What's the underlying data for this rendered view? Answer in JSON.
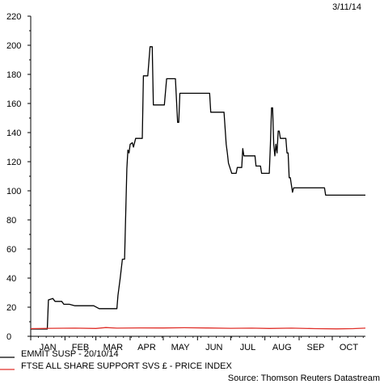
{
  "date_stamp": "3/11/14",
  "source_note": "Source: Thomson Reuters Datastream",
  "chart_data": {
    "type": "line",
    "title": "",
    "xlabel": "",
    "ylabel": "",
    "ylim": [
      0,
      220
    ],
    "y_ticks": [
      0,
      20,
      40,
      60,
      80,
      100,
      120,
      140,
      160,
      180,
      200,
      220
    ],
    "x_range": [
      "2014-01-01",
      "2014-10-31"
    ],
    "x_ticks": [
      {
        "label": "JAN",
        "date": "2014-01-01"
      },
      {
        "label": "FEB",
        "date": "2014-02-01"
      },
      {
        "label": "MAR",
        "date": "2014-03-01"
      },
      {
        "label": "APR",
        "date": "2014-04-01"
      },
      {
        "label": "MAY",
        "date": "2014-05-01"
      },
      {
        "label": "JUN",
        "date": "2014-06-01"
      },
      {
        "label": "JUL",
        "date": "2014-07-01"
      },
      {
        "label": "AUG",
        "date": "2014-08-01"
      },
      {
        "label": "SEP",
        "date": "2014-09-01"
      },
      {
        "label": "OCT",
        "date": "2014-10-01"
      }
    ],
    "grid": false,
    "legend_placement": "bottom-left",
    "series": [
      {
        "name": "EMMIT SUSP - 20/10/14",
        "color": "#000000",
        "points": [
          [
            "2014-01-01",
            5
          ],
          [
            "2014-01-16",
            5
          ],
          [
            "2014-01-17",
            25
          ],
          [
            "2014-01-21",
            26
          ],
          [
            "2014-01-23",
            24
          ],
          [
            "2014-01-29",
            24
          ],
          [
            "2014-01-31",
            22
          ],
          [
            "2014-02-05",
            22
          ],
          [
            "2014-02-10",
            21
          ],
          [
            "2014-02-27",
            21
          ],
          [
            "2014-03-04",
            19
          ],
          [
            "2014-03-20",
            19
          ],
          [
            "2014-03-21",
            28
          ],
          [
            "2014-03-23",
            40
          ],
          [
            "2014-03-25",
            53
          ],
          [
            "2014-03-27",
            53
          ],
          [
            "2014-03-29",
            115
          ],
          [
            "2014-03-30",
            128
          ],
          [
            "2014-03-31",
            126
          ],
          [
            "2014-04-01",
            132
          ],
          [
            "2014-04-03",
            133
          ],
          [
            "2014-04-04",
            130
          ],
          [
            "2014-04-06",
            136
          ],
          [
            "2014-04-12",
            136
          ],
          [
            "2014-04-13",
            179
          ],
          [
            "2014-04-17",
            179
          ],
          [
            "2014-04-19",
            199
          ],
          [
            "2014-04-21",
            199
          ],
          [
            "2014-04-22",
            159
          ],
          [
            "2014-05-02",
            159
          ],
          [
            "2014-05-04",
            177
          ],
          [
            "2014-05-12",
            177
          ],
          [
            "2014-05-14",
            147
          ],
          [
            "2014-05-15",
            147
          ],
          [
            "2014-05-16",
            167
          ],
          [
            "2014-06-12",
            167
          ],
          [
            "2014-06-13",
            154
          ],
          [
            "2014-06-25",
            154
          ],
          [
            "2014-06-27",
            132
          ],
          [
            "2014-06-28",
            126
          ],
          [
            "2014-06-29",
            119
          ],
          [
            "2014-07-02",
            112
          ],
          [
            "2014-07-06",
            112
          ],
          [
            "2014-07-07",
            116
          ],
          [
            "2014-07-11",
            116
          ],
          [
            "2014-07-12",
            129
          ],
          [
            "2014-07-13",
            124
          ],
          [
            "2014-07-23",
            124
          ],
          [
            "2014-07-24",
            117
          ],
          [
            "2014-07-28",
            117
          ],
          [
            "2014-07-29",
            112
          ],
          [
            "2014-08-05",
            112
          ],
          [
            "2014-08-06",
            132
          ],
          [
            "2014-08-07",
            157
          ],
          [
            "2014-08-08",
            157
          ],
          [
            "2014-08-09",
            132
          ],
          [
            "2014-08-10",
            124
          ],
          [
            "2014-08-11",
            132
          ],
          [
            "2014-08-12",
            126
          ],
          [
            "2014-08-13",
            141
          ],
          [
            "2014-08-14",
            141
          ],
          [
            "2014-08-15",
            136
          ],
          [
            "2014-08-20",
            136
          ],
          [
            "2014-08-21",
            126
          ],
          [
            "2014-08-22",
            126
          ],
          [
            "2014-08-23",
            109
          ],
          [
            "2014-08-24",
            109
          ],
          [
            "2014-08-26",
            99
          ],
          [
            "2014-08-27",
            102
          ],
          [
            "2014-09-24",
            102
          ],
          [
            "2014-09-25",
            97
          ],
          [
            "2014-10-31",
            97
          ]
        ]
      },
      {
        "name": "FTSE ALL SHARE SUPPORT SVS £ - PRICE INDEX",
        "color": "#e0302a",
        "points": [
          [
            "2014-01-01",
            5.3
          ],
          [
            "2014-01-20",
            5.5
          ],
          [
            "2014-02-10",
            5.6
          ],
          [
            "2014-03-01",
            5.4
          ],
          [
            "2014-03-10",
            6.0
          ],
          [
            "2014-03-20",
            5.6
          ],
          [
            "2014-04-10",
            5.8
          ],
          [
            "2014-05-01",
            5.7
          ],
          [
            "2014-05-20",
            5.9
          ],
          [
            "2014-06-10",
            5.7
          ],
          [
            "2014-07-01",
            5.5
          ],
          [
            "2014-07-20",
            5.6
          ],
          [
            "2014-08-05",
            5.4
          ],
          [
            "2014-08-25",
            5.6
          ],
          [
            "2014-09-15",
            5.3
          ],
          [
            "2014-10-05",
            5.1
          ],
          [
            "2014-10-20",
            5.3
          ],
          [
            "2014-10-31",
            5.6
          ]
        ]
      }
    ]
  }
}
